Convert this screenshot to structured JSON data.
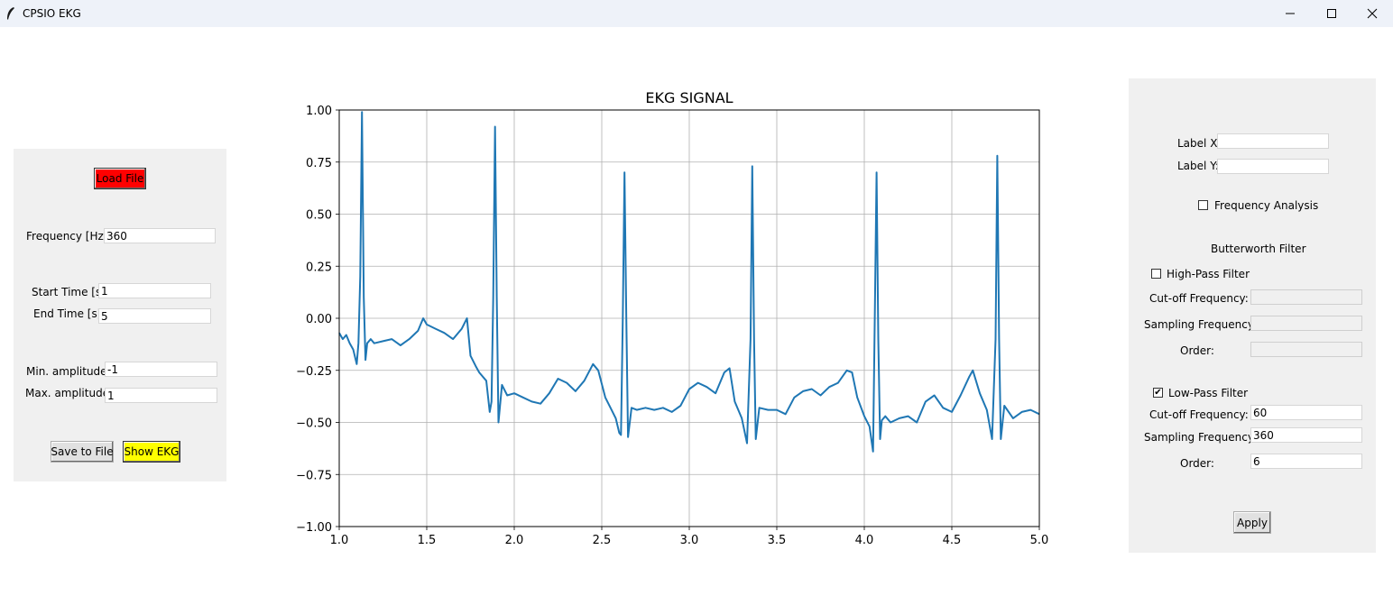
{
  "window": {
    "title": "CPSIO EKG",
    "icon": "feather-icon",
    "controls": [
      "minimize-icon",
      "maximize-icon",
      "close-icon"
    ]
  },
  "left_panel": {
    "load_label": "Load File",
    "load_color": "#ff0000",
    "frequency_label": "Frequency [Hz]:",
    "frequency_value": "360",
    "start_label": "Start Time [s]:",
    "start_value": "1",
    "end_label": "End Time [s]:",
    "end_value": "5",
    "min_amp_label": "Min. amplitude:",
    "min_amp_value": "-1",
    "max_amp_label": "Max. amplitude:",
    "max_amp_value": "1",
    "save_label": "Save to File",
    "show_label": "Show EKG",
    "show_color": "#ffff00"
  },
  "right_panel": {
    "label_x": "Label X:",
    "label_x_value": "",
    "label_y": "Label Y:",
    "label_y_value": "",
    "freq_analysis_label": "Frequency Analysis",
    "freq_analysis_checked": false,
    "butterworth_title": "Butterworth Filter",
    "highpass": {
      "label": "High-Pass Filter",
      "checked": false,
      "cutoff_label": "Cut-off Frequency:",
      "cutoff_value": "",
      "sampling_label": "Sampling Frequency:",
      "sampling_value": "",
      "order_label": "Order:",
      "order_value": ""
    },
    "lowpass": {
      "label": "Low-Pass Filter",
      "checked": true,
      "cutoff_label": "Cut-off Frequency:",
      "cutoff_value": "60",
      "sampling_label": "Sampling Frequency:",
      "sampling_value": "360",
      "order_label": "Order:",
      "order_value": "6"
    },
    "apply_label": "Apply"
  },
  "chart_data": {
    "type": "line",
    "title": "EKG SIGNAL",
    "xlabel": "",
    "ylabel": "",
    "xlim": [
      1.0,
      5.0
    ],
    "ylim": [
      -1.0,
      1.0
    ],
    "xticks": [
      "1.0",
      "1.5",
      "2.0",
      "2.5",
      "3.0",
      "3.5",
      "4.0",
      "4.5",
      "5.0"
    ],
    "yticks": [
      "1.00",
      "0.75",
      "0.50",
      "0.25",
      "0.00",
      "−0.25",
      "−0.50",
      "−0.75",
      "−1.00"
    ],
    "grid": true,
    "color": "#1f77b4",
    "series": [
      {
        "x": [
          1.0,
          1.02,
          1.04,
          1.06,
          1.08,
          1.1,
          1.11,
          1.12,
          1.13,
          1.14,
          1.15,
          1.16,
          1.18,
          1.2,
          1.25,
          1.3,
          1.35,
          1.4,
          1.45,
          1.48,
          1.5,
          1.55,
          1.6,
          1.65,
          1.7,
          1.73,
          1.75,
          1.78,
          1.8,
          1.84,
          1.86,
          1.87,
          1.88,
          1.89,
          1.9,
          1.91,
          1.93,
          1.96,
          2.0,
          2.05,
          2.1,
          2.15,
          2.2,
          2.25,
          2.3,
          2.35,
          2.4,
          2.45,
          2.48,
          2.52,
          2.55,
          2.58,
          2.6,
          2.61,
          2.62,
          2.63,
          2.64,
          2.65,
          2.67,
          2.7,
          2.75,
          2.8,
          2.85,
          2.9,
          2.95,
          3.0,
          3.05,
          3.1,
          3.15,
          3.2,
          3.23,
          3.26,
          3.3,
          3.33,
          3.35,
          3.36,
          3.37,
          3.38,
          3.4,
          3.45,
          3.5,
          3.55,
          3.6,
          3.65,
          3.7,
          3.75,
          3.8,
          3.85,
          3.9,
          3.93,
          3.96,
          4.0,
          4.03,
          4.05,
          4.06,
          4.07,
          4.08,
          4.09,
          4.1,
          4.12,
          4.15,
          4.2,
          4.25,
          4.3,
          4.35,
          4.4,
          4.45,
          4.5,
          4.55,
          4.6,
          4.62,
          4.66,
          4.7,
          4.73,
          4.75,
          4.76,
          4.77,
          4.78,
          4.8,
          4.85,
          4.9,
          4.95,
          5.0
        ],
        "y": [
          -0.07,
          -0.1,
          -0.08,
          -0.12,
          -0.15,
          -0.22,
          -0.12,
          0.2,
          0.99,
          0.1,
          -0.2,
          -0.12,
          -0.1,
          -0.12,
          -0.11,
          -0.1,
          -0.13,
          -0.1,
          -0.06,
          0.0,
          -0.03,
          -0.05,
          -0.07,
          -0.1,
          -0.05,
          0.0,
          -0.18,
          -0.23,
          -0.26,
          -0.3,
          -0.45,
          -0.4,
          0.1,
          0.92,
          0.1,
          -0.5,
          -0.32,
          -0.37,
          -0.36,
          -0.38,
          -0.4,
          -0.41,
          -0.36,
          -0.29,
          -0.31,
          -0.35,
          -0.3,
          -0.22,
          -0.25,
          -0.38,
          -0.43,
          -0.48,
          -0.55,
          -0.56,
          0.0,
          0.7,
          0.0,
          -0.57,
          -0.43,
          -0.44,
          -0.43,
          -0.44,
          -0.43,
          -0.45,
          -0.42,
          -0.34,
          -0.31,
          -0.33,
          -0.36,
          -0.26,
          -0.24,
          -0.4,
          -0.48,
          -0.6,
          -0.1,
          0.73,
          -0.1,
          -0.58,
          -0.43,
          -0.44,
          -0.44,
          -0.46,
          -0.38,
          -0.35,
          -0.34,
          -0.37,
          -0.33,
          -0.31,
          -0.25,
          -0.26,
          -0.38,
          -0.47,
          -0.52,
          -0.64,
          0.0,
          0.7,
          -0.1,
          -0.58,
          -0.49,
          -0.47,
          -0.5,
          -0.48,
          -0.47,
          -0.5,
          -0.4,
          -0.37,
          -0.43,
          -0.45,
          -0.37,
          -0.28,
          -0.25,
          -0.36,
          -0.44,
          -0.58,
          -0.1,
          0.78,
          -0.1,
          -0.58,
          -0.42,
          -0.48,
          -0.45,
          -0.44,
          -0.46
        ]
      }
    ]
  }
}
